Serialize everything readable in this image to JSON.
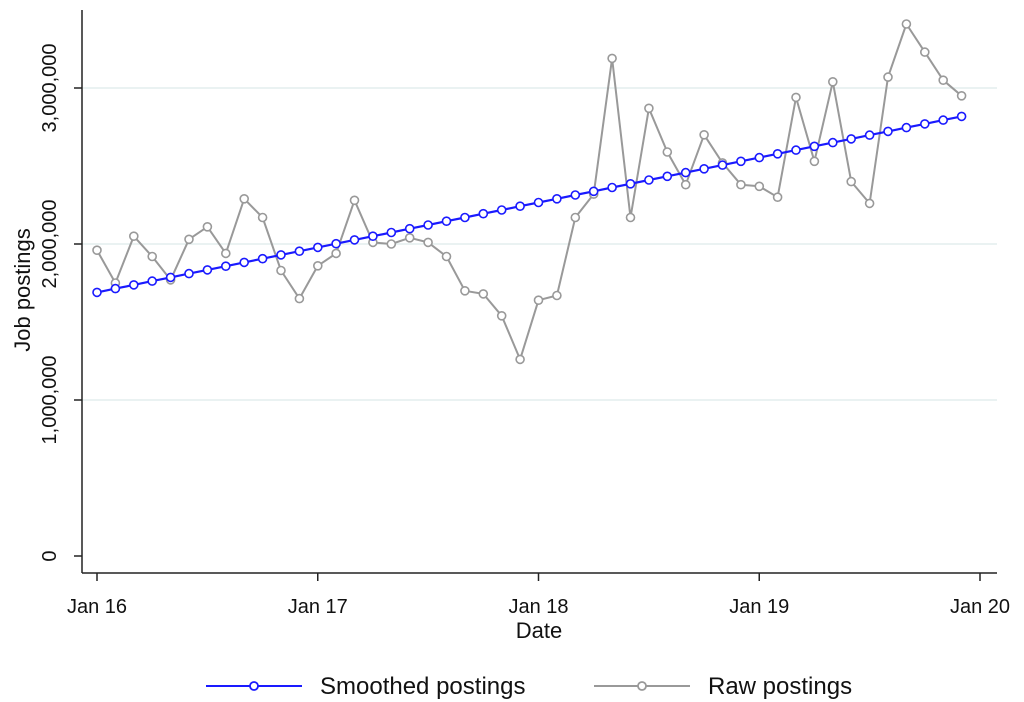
{
  "chart_data": {
    "type": "line",
    "title": "",
    "xlabel": "Date",
    "ylabel": "Job postings",
    "x_axis": {
      "type": "date",
      "range": [
        "2016-01",
        "2020-01"
      ],
      "ticks": [
        {
          "value": "2016-01",
          "label": "Jan 16"
        },
        {
          "value": "2017-01",
          "label": "Jan 17"
        },
        {
          "value": "2018-01",
          "label": "Jan 18"
        },
        {
          "value": "2019-01",
          "label": "Jan 19"
        },
        {
          "value": "2020-01",
          "label": "Jan 20"
        }
      ]
    },
    "y_axis": {
      "range": [
        0,
        3500000
      ],
      "ticks": [
        {
          "value": 0,
          "label": "0"
        },
        {
          "value": 1000000,
          "label": "1,000,000"
        },
        {
          "value": 2000000,
          "label": "2,000,000"
        },
        {
          "value": 3000000,
          "label": "3,000,000"
        }
      ]
    },
    "grid": "horizontal",
    "legend": "bottom",
    "x": [
      "2016-01",
      "2016-02",
      "2016-03",
      "2016-04",
      "2016-05",
      "2016-06",
      "2016-07",
      "2016-08",
      "2016-09",
      "2016-10",
      "2016-11",
      "2016-12",
      "2017-01",
      "2017-02",
      "2017-03",
      "2017-04",
      "2017-05",
      "2017-06",
      "2017-07",
      "2017-08",
      "2017-09",
      "2017-10",
      "2017-11",
      "2017-12",
      "2018-01",
      "2018-02",
      "2018-03",
      "2018-04",
      "2018-05",
      "2018-06",
      "2018-07",
      "2018-08",
      "2018-09",
      "2018-10",
      "2018-11",
      "2018-12",
      "2019-01",
      "2019-02",
      "2019-03",
      "2019-04",
      "2019-05",
      "2019-06",
      "2019-07",
      "2019-08",
      "2019-09",
      "2019-10",
      "2019-11",
      "2019-12"
    ],
    "series": [
      {
        "name": "Smoothed postings",
        "color": "#1a1aff",
        "values": [
          1690000,
          1714000,
          1738000,
          1762000,
          1786000,
          1810000,
          1834000,
          1858000,
          1882000,
          1906000,
          1930000,
          1954000,
          1978000,
          2002000,
          2026000,
          2050000,
          2074000,
          2098000,
          2122000,
          2146000,
          2170000,
          2194000,
          2218000,
          2242000,
          2266000,
          2290000,
          2314000,
          2338000,
          2362000,
          2386000,
          2410000,
          2434000,
          2458000,
          2482000,
          2506000,
          2530000,
          2554000,
          2578000,
          2602000,
          2626000,
          2650000,
          2674000,
          2698000,
          2722000,
          2746000,
          2770000,
          2794000,
          2818000
        ]
      },
      {
        "name": "Raw postings",
        "color": "#999999",
        "values": [
          1960000,
          1750000,
          2050000,
          1920000,
          1770000,
          2030000,
          2110000,
          1940000,
          2290000,
          2170000,
          1830000,
          1650000,
          1860000,
          1940000,
          2280000,
          2010000,
          2000000,
          2040000,
          2010000,
          1920000,
          1700000,
          1680000,
          1540000,
          1260000,
          1640000,
          1670000,
          2170000,
          2320000,
          3190000,
          2170000,
          2870000,
          2590000,
          2380000,
          2700000,
          2520000,
          2380000,
          2370000,
          2300000,
          2940000,
          2530000,
          3040000,
          2400000,
          2260000,
          3070000,
          3410000,
          3230000,
          3050000,
          2950000
        ]
      }
    ]
  }
}
